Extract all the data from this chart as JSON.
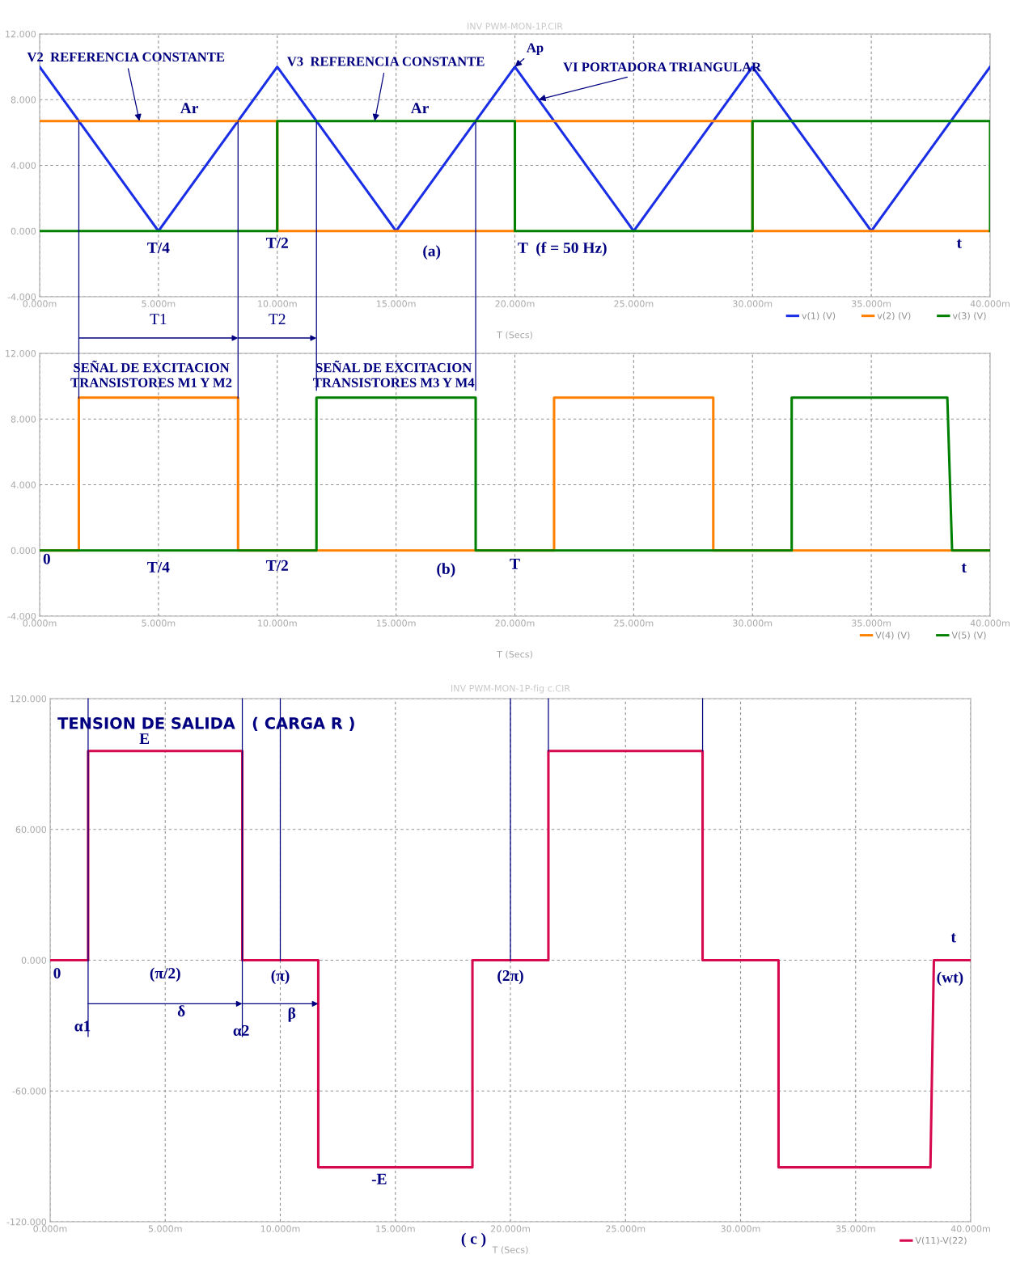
{
  "chart_data": [
    {
      "type": "line",
      "subtitle": "INV PWM-MON-1P.CIR",
      "xlabel": "T (Secs)",
      "grid": true,
      "legend": "bottom",
      "xlim": [
        0,
        40
      ],
      "xticks": [
        {
          "value": 0,
          "label": "0.000m"
        },
        {
          "value": 5,
          "label": "5.000m"
        },
        {
          "value": 10,
          "label": "10.000m"
        },
        {
          "value": 15,
          "label": "15.000m"
        },
        {
          "value": 20,
          "label": "20.000m"
        },
        {
          "value": 25,
          "label": "25.000m"
        },
        {
          "value": 30,
          "label": "30.000m"
        },
        {
          "value": 35,
          "label": "35.000m"
        },
        {
          "value": 40,
          "label": "40.000m"
        }
      ],
      "ylim": [
        -4,
        12
      ],
      "yticks": [
        {
          "value": -4,
          "label": "-4.000"
        },
        {
          "value": 0,
          "label": "0.000"
        },
        {
          "value": 4,
          "label": "4.000"
        },
        {
          "value": 8,
          "label": "8.000"
        },
        {
          "value": 12,
          "label": "12.000"
        }
      ],
      "series": [
        {
          "name": "v(1) (V)",
          "color": "#1a2ee6",
          "x": [
            0,
            5,
            10,
            15,
            20,
            25,
            30,
            35,
            40
          ],
          "values": [
            10,
            0,
            10,
            0,
            10,
            0,
            10,
            0,
            10
          ]
        },
        {
          "name": "v(2) (V)",
          "color": "#ff8000",
          "x": [
            0,
            10,
            10,
            20,
            20,
            30,
            30,
            40
          ],
          "values": [
            6.7,
            6.7,
            0,
            0,
            6.7,
            6.7,
            0,
            0
          ]
        },
        {
          "name": "v(3) (V)",
          "color": "#008000",
          "x": [
            0,
            10,
            10,
            20,
            20,
            30,
            30,
            40,
            40
          ],
          "values": [
            0,
            0,
            6.7,
            6.7,
            0,
            0,
            6.7,
            6.7,
            0
          ]
        }
      ],
      "ref_lines": [
        {
          "axis": "x",
          "value": 1.65
        },
        {
          "axis": "x",
          "value": 8.35
        },
        {
          "axis": "x",
          "value": 11.65
        },
        {
          "axis": "x",
          "value": 18.35
        }
      ],
      "annotations": [
        {
          "text": "V2  REFERENCIA CONSTANTE",
          "x": 4.2,
          "y": 6.7
        },
        "Ar",
        {
          "text": "V3  REFERENCIA CONSTANTE",
          "x": 14.1,
          "y": 6.7
        },
        "Ar",
        {
          "text": "Ap",
          "x": 20,
          "y": 10
        },
        {
          "text": "VI PORTADORA TRIANGULAR",
          "x": 21,
          "y": 8
        },
        "T/4",
        "T/2",
        "(a)",
        "T  (f = 50 Hz)",
        "t",
        "T1",
        "T2"
      ]
    },
    {
      "type": "line",
      "xlabel": "T (Secs)",
      "grid": true,
      "legend": "bottom",
      "xlim": [
        0,
        40
      ],
      "xticks": [
        {
          "value": 0,
          "label": "0.000m"
        },
        {
          "value": 5,
          "label": "5.000m"
        },
        {
          "value": 10,
          "label": "10.000m"
        },
        {
          "value": 15,
          "label": "15.000m"
        },
        {
          "value": 20,
          "label": "20.000m"
        },
        {
          "value": 25,
          "label": "25.000m"
        },
        {
          "value": 30,
          "label": "30.000m"
        },
        {
          "value": 35,
          "label": "35.000m"
        },
        {
          "value": 40,
          "label": "40.000m"
        }
      ],
      "ylim": [
        -4,
        12
      ],
      "yticks": [
        {
          "value": -4,
          "label": "-4.000"
        },
        {
          "value": 0,
          "label": "0.000"
        },
        {
          "value": 4,
          "label": "4.000"
        },
        {
          "value": 8,
          "label": "8.000"
        },
        {
          "value": 12,
          "label": "12.000"
        }
      ],
      "series": [
        {
          "name": "V(4) (V)",
          "color": "#ff8000",
          "x": [
            0,
            1.65,
            1.65,
            8.35,
            8.35,
            21.65,
            21.65,
            28.35,
            28.35,
            40
          ],
          "values": [
            0,
            0,
            9.3,
            9.3,
            0,
            0,
            9.3,
            9.3,
            0,
            0
          ]
        },
        {
          "name": "V(5) (V)",
          "color": "#008000",
          "x": [
            0,
            11.65,
            11.65,
            18.35,
            18.35,
            31.65,
            31.65,
            38.2,
            38.4,
            40
          ],
          "values": [
            0,
            0,
            9.3,
            9.3,
            0,
            0,
            9.3,
            9.3,
            0,
            0
          ]
        }
      ],
      "ref_lines": [
        {
          "axis": "x",
          "value": 1.65
        },
        {
          "axis": "x",
          "value": 8.35
        },
        {
          "axis": "x",
          "value": 11.65
        },
        {
          "axis": "x",
          "value": 18.35
        }
      ],
      "annotations": [
        "SEÑAL DE EXCITACION\nTRANSISTORES M1 Y M2",
        "SEÑAL DE EXCITACION\nTRANSISTORES M3 Y M4",
        "0",
        "T/4",
        "T/2",
        "(b)",
        "T",
        "t"
      ]
    },
    {
      "type": "line",
      "title": "TENSION DE SALIDA   ( CARGA R )",
      "subtitle": "INV PWM-MON-1P-fig c.CIR",
      "xlabel": "T (Secs)",
      "grid": true,
      "legend": "bottom",
      "xlim": [
        0,
        40
      ],
      "xticks": [
        {
          "value": 0,
          "label": "0.000m"
        },
        {
          "value": 5,
          "label": "5.000m"
        },
        {
          "value": 10,
          "label": "10.000m"
        },
        {
          "value": 15,
          "label": "15.000m"
        },
        {
          "value": 20,
          "label": "20.000m"
        },
        {
          "value": 25,
          "label": "25.000m"
        },
        {
          "value": 30,
          "label": "30.000m"
        },
        {
          "value": 35,
          "label": "35.000m"
        },
        {
          "value": 40,
          "label": "40.000m"
        }
      ],
      "ylim": [
        -120,
        120
      ],
      "yticks": [
        {
          "value": -120,
          "label": "-120.000"
        },
        {
          "value": -60,
          "label": "-60.000"
        },
        {
          "value": 0,
          "label": "0.000"
        },
        {
          "value": 60,
          "label": "60.000"
        },
        {
          "value": 120,
          "label": "120.000"
        }
      ],
      "series": [
        {
          "name": "V(11)-V(22)",
          "color": "#d6084e",
          "x": [
            0,
            1.65,
            1.65,
            8.35,
            8.35,
            11.65,
            11.65,
            18.35,
            18.35,
            21.65,
            21.65,
            28.35,
            28.35,
            31.65,
            31.65,
            38.25,
            38.4,
            40
          ],
          "values": [
            0,
            0,
            96,
            96,
            0,
            0,
            -95,
            -95,
            0,
            0,
            96,
            96,
            0,
            0,
            -95,
            -95,
            0,
            0
          ]
        }
      ],
      "ref_lines": [
        {
          "axis": "x",
          "value": 1.65
        },
        {
          "axis": "x",
          "value": 8.35
        },
        {
          "axis": "x",
          "value": 10
        },
        {
          "axis": "x",
          "value": 20
        },
        {
          "axis": "x",
          "value": 21.65
        },
        {
          "axis": "x",
          "value": 28.35
        }
      ],
      "annotations": [
        "E",
        "-E",
        "0",
        "(π/2)",
        "(π)",
        "(2π)",
        "(wt)",
        "t",
        {
          "text": "α1",
          "x": 1.65,
          "y": -20
        },
        "δ",
        {
          "text": "α2",
          "x": 8.35,
          "y": -20
        },
        "β",
        "( c )"
      ]
    }
  ]
}
